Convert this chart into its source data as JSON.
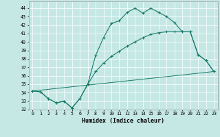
{
  "xlabel": "Humidex (Indice chaleur)",
  "bg_color": "#c5e8e5",
  "line_color": "#1a7a6a",
  "xlim": [
    -0.5,
    23.5
  ],
  "ylim": [
    32,
    44.8
  ],
  "yticks": [
    32,
    33,
    34,
    35,
    36,
    37,
    38,
    39,
    40,
    41,
    42,
    43,
    44
  ],
  "xticks": [
    0,
    1,
    2,
    3,
    4,
    5,
    6,
    7,
    8,
    9,
    10,
    11,
    12,
    13,
    14,
    15,
    16,
    17,
    18,
    19,
    20,
    21,
    22,
    23
  ],
  "series1_x": [
    0,
    1,
    2,
    3,
    4,
    5,
    6,
    7,
    8,
    9,
    10,
    11,
    12,
    13,
    14,
    15,
    16,
    17,
    18,
    19,
    20,
    21,
    22,
    23
  ],
  "series1_y": [
    34.2,
    34.1,
    33.3,
    32.8,
    33.0,
    32.2,
    33.3,
    35.0,
    38.4,
    40.5,
    42.2,
    42.5,
    43.5,
    44.0,
    43.4,
    44.0,
    43.5,
    43.0,
    42.3,
    41.2,
    41.2,
    38.5,
    37.8,
    36.5
  ],
  "series2_x": [
    0,
    1,
    2,
    3,
    4,
    5,
    6,
    7,
    8,
    9,
    10,
    11,
    12,
    13,
    14,
    15,
    16,
    17,
    18,
    19,
    20,
    21,
    22,
    23
  ],
  "series2_y": [
    34.2,
    34.1,
    33.3,
    32.8,
    33.0,
    32.2,
    33.3,
    35.0,
    36.5,
    37.5,
    38.3,
    38.9,
    39.5,
    40.0,
    40.5,
    40.9,
    41.1,
    41.2,
    41.2,
    41.2,
    41.2,
    38.5,
    37.8,
    36.5
  ],
  "series3_x": [
    0,
    23
  ],
  "series3_y": [
    34.2,
    36.5
  ]
}
